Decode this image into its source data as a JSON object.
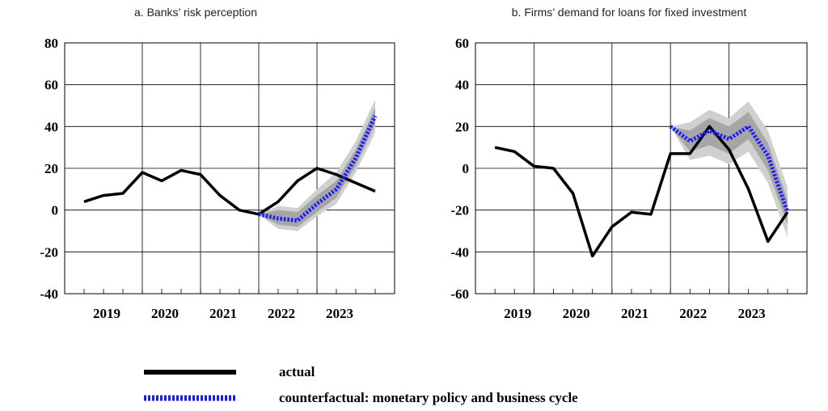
{
  "legend": [
    {
      "label": "actual",
      "color": "#000000",
      "style": "solid"
    },
    {
      "label": "counterfactual: monetary policy and business cycle",
      "color": "#1a1aff",
      "style": "dotted"
    }
  ],
  "chart_data": [
    {
      "type": "line",
      "title": "a. Banks’ risk perception",
      "ylim": [
        -40,
        80
      ],
      "yticks": [
        -40,
        -20,
        0,
        20,
        40,
        60,
        80
      ],
      "xlim": [
        0,
        17
      ],
      "year_labels": [
        "2019",
        "2020",
        "2021",
        "2022",
        "2023"
      ],
      "year_label_x": [
        2,
        5,
        8,
        11,
        14
      ],
      "vertical_gridlines_x": [
        0,
        4,
        7,
        10,
        13,
        17
      ],
      "bold_vertical_line_x": 7,
      "grid": true,
      "legend_position": "bottom",
      "series": [
        {
          "name": "actual",
          "x": [
            1,
            2,
            3,
            4,
            5,
            6,
            7,
            8,
            9,
            10,
            11,
            12,
            13,
            14,
            15,
            16
          ],
          "values": [
            4,
            7,
            8,
            18,
            14,
            19,
            17,
            7,
            0,
            -2,
            4,
            14,
            20,
            17,
            13,
            9
          ]
        },
        {
          "name": "counterfactual: monetary policy and business cycle",
          "x": [
            10,
            11,
            12,
            13,
            14,
            15,
            16
          ],
          "values": [
            -2,
            -4,
            -5,
            3,
            10,
            25,
            45
          ]
        }
      ],
      "bands": {
        "x": [
          10,
          11,
          12,
          13,
          14,
          15,
          16
        ],
        "outer_lower": [
          -2,
          -9,
          -10,
          -3,
          3,
          18,
          37
        ],
        "outer_upper": [
          -2,
          2,
          1,
          10,
          18,
          33,
          53
        ],
        "inner_lower": [
          -2,
          -7,
          -8,
          -1,
          6,
          21,
          41
        ],
        "inner_upper": [
          -2,
          0,
          -1,
          7,
          14,
          29,
          49
        ]
      }
    },
    {
      "type": "line",
      "title": "b. Firms’ demand for loans for fixed investment",
      "ylim": [
        -60,
        60
      ],
      "yticks": [
        -60,
        -40,
        -20,
        0,
        20,
        40,
        60
      ],
      "xlim": [
        0,
        17
      ],
      "year_labels": [
        "2019",
        "2020",
        "2021",
        "2022",
        "2023"
      ],
      "year_label_x": [
        2,
        5,
        8,
        11,
        14
      ],
      "vertical_gridlines_x": [
        0,
        3,
        7,
        10,
        13,
        17
      ],
      "bold_vertical_line_x": 3,
      "bold_vertical_line_x2": 13,
      "grid": true,
      "legend_position": "bottom",
      "series": [
        {
          "name": "actual",
          "x": [
            1,
            2,
            3,
            4,
            5,
            6,
            7,
            8,
            9,
            10,
            11,
            12,
            13,
            14,
            15,
            16
          ],
          "values": [
            10,
            8,
            1,
            0,
            -12,
            -42,
            -28,
            -21,
            -22,
            7,
            7,
            20,
            9,
            -10,
            -35,
            -21
          ]
        },
        {
          "name": "counterfactual: monetary policy and business cycle",
          "x": [
            10,
            11,
            12,
            13,
            14,
            15,
            16
          ],
          "values": [
            20,
            13,
            18,
            14,
            20,
            6,
            -21
          ]
        }
      ],
      "bands": {
        "x": [
          10,
          11,
          12,
          13,
          14,
          15,
          16
        ],
        "outer_lower": [
          20,
          4,
          6,
          2,
          8,
          -7,
          -33
        ],
        "outer_upper": [
          20,
          22,
          28,
          24,
          32,
          18,
          -9
        ],
        "inner_lower": [
          20,
          8,
          11,
          7,
          14,
          -1,
          -27
        ],
        "inner_upper": [
          20,
          18,
          24,
          20,
          27,
          12,
          -15
        ]
      }
    }
  ]
}
